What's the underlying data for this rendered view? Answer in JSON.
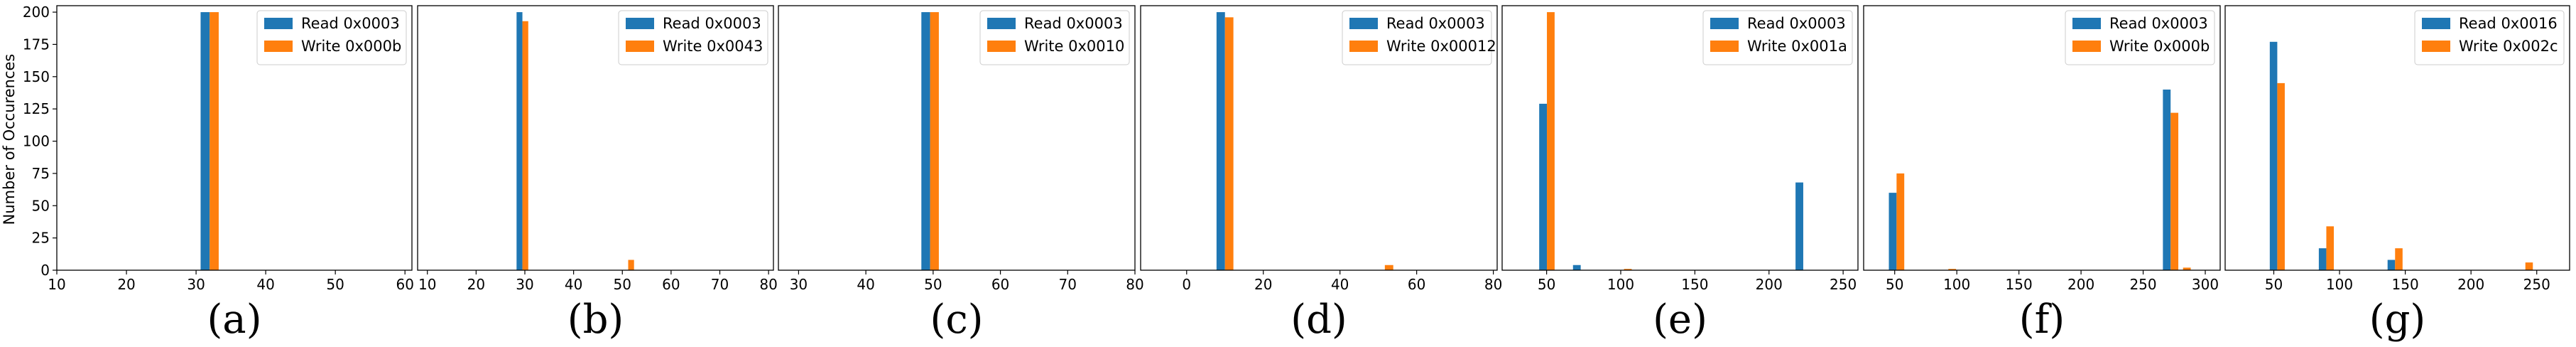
{
  "colors": {
    "read": "#1f77b4",
    "write": "#ff7f0e",
    "axis": "#000000",
    "legend_border": "#cccccc"
  },
  "figure": {
    "ylabel": "Number of Occurences"
  },
  "chart_data": [
    {
      "type": "bar",
      "caption": "(a)",
      "xlim": [
        10,
        61
      ],
      "ylim": [
        0,
        205
      ],
      "xticks": [
        10,
        20,
        30,
        40,
        50,
        60
      ],
      "yticks": [
        0,
        25,
        50,
        75,
        100,
        125,
        150,
        175,
        200
      ],
      "bar_width": 1.3,
      "series": [
        {
          "name": "Read 0x0003",
          "points": [
            [
              31.3,
              200
            ]
          ]
        },
        {
          "name": "Write 0x000b",
          "points": [
            [
              32.6,
              200
            ]
          ]
        }
      ]
    },
    {
      "type": "bar",
      "caption": "(b)",
      "xlim": [
        8,
        81
      ],
      "ylim": [
        0,
        205
      ],
      "xticks": [
        10,
        20,
        30,
        40,
        50,
        60,
        70,
        80
      ],
      "bar_width": 1.2,
      "series": [
        {
          "name": "Read 0x0003",
          "points": [
            [
              28.9,
              200
            ]
          ]
        },
        {
          "name": "Write 0x0043",
          "points": [
            [
              30.1,
              193
            ],
            [
              51.8,
              8
            ]
          ]
        }
      ]
    },
    {
      "type": "bar",
      "caption": "(c)",
      "xlim": [
        27,
        80
      ],
      "ylim": [
        0,
        205
      ],
      "xticks": [
        30,
        40,
        50,
        60,
        70,
        80
      ],
      "bar_width": 1.3,
      "series": [
        {
          "name": "Read 0x0003",
          "points": [
            [
              48.9,
              200
            ]
          ]
        },
        {
          "name": "Write 0x0010",
          "points": [
            [
              50.2,
              200
            ]
          ]
        }
      ]
    },
    {
      "type": "bar",
      "caption": "(d)",
      "xlim": [
        -12,
        81
      ],
      "ylim": [
        0,
        205
      ],
      "xticks": [
        0,
        20,
        40,
        60,
        80
      ],
      "bar_width": 2.2,
      "series": [
        {
          "name": "Read 0x0003",
          "points": [
            [
              8.9,
              200
            ]
          ]
        },
        {
          "name": "Write 0x00012",
          "points": [
            [
              11.1,
              196
            ],
            [
              52.8,
              4
            ]
          ]
        }
      ]
    },
    {
      "type": "bar",
      "caption": "(e)",
      "xlim": [
        20,
        260
      ],
      "ylim": [
        0,
        205
      ],
      "xticks": [
        50,
        100,
        150,
        200,
        250
      ],
      "bar_width": 5.2,
      "series": [
        {
          "name": "Read 0x0003",
          "points": [
            [
              47.6,
              129
            ],
            [
              70.4,
              4
            ],
            [
              220.5,
              68
            ]
          ]
        },
        {
          "name": "Write 0x001a",
          "points": [
            [
              52.8,
              200
            ],
            [
              104.8,
              1
            ]
          ]
        }
      ]
    },
    {
      "type": "bar",
      "caption": "(f)",
      "xlim": [
        25,
        312
      ],
      "ylim": [
        0,
        205
      ],
      "xticks": [
        50,
        100,
        150,
        200,
        250,
        300
      ],
      "bar_width": 6.2,
      "series": [
        {
          "name": "Read 0x0003",
          "points": [
            [
              48.4,
              60
            ],
            [
              269.0,
              140
            ]
          ]
        },
        {
          "name": "Write 0x000b",
          "points": [
            [
              54.6,
              75
            ],
            [
              96.3,
              1
            ],
            [
              275.2,
              122
            ],
            [
              285.2,
              2
            ]
          ]
        }
      ]
    },
    {
      "type": "bar",
      "caption": "(g)",
      "xlim": [
        13,
        275
      ],
      "ylim": [
        0,
        205
      ],
      "xticks": [
        50,
        100,
        150,
        200,
        250
      ],
      "bar_width": 5.7,
      "series": [
        {
          "name": "Read 0x0016",
          "points": [
            [
              49.8,
              177
            ],
            [
              87.1,
              17
            ],
            [
              139.4,
              8
            ]
          ]
        },
        {
          "name": "Write 0x002c",
          "points": [
            [
              55.5,
              145
            ],
            [
              92.8,
              34
            ],
            [
              145.1,
              17
            ],
            [
              244.2,
              6
            ]
          ]
        }
      ]
    }
  ]
}
